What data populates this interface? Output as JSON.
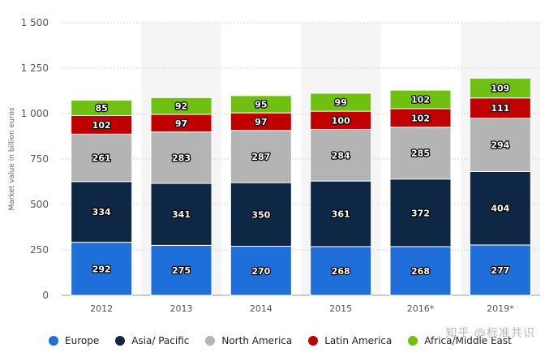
{
  "chart_data": {
    "type": "bar",
    "stacked": true,
    "categories": [
      "2012",
      "2013",
      "2014",
      "2015",
      "2016*",
      "2019*"
    ],
    "series": [
      {
        "name": "Europe",
        "color": "#1f6fdb",
        "values": [
          292,
          275,
          270,
          268,
          268,
          277
        ]
      },
      {
        "name": "Asia/ Pacific",
        "color": "#0d2744",
        "values": [
          334,
          341,
          350,
          361,
          372,
          404
        ]
      },
      {
        "name": "North America",
        "color": "#b4b4b4",
        "values": [
          261,
          283,
          287,
          284,
          285,
          294
        ]
      },
      {
        "name": "Latin America",
        "color": "#c00000",
        "values": [
          102,
          97,
          97,
          100,
          102,
          111
        ]
      },
      {
        "name": "Africa/Middle East",
        "color": "#6fc010",
        "values": [
          85,
          92,
          95,
          99,
          102,
          109
        ]
      }
    ],
    "ylabel": "Market value in billion euros",
    "ylim": [
      0,
      1500
    ],
    "yticks": [
      0,
      250,
      500,
      750,
      1000,
      1250,
      1500
    ],
    "ytick_labels": [
      "0",
      "250",
      "500",
      "750",
      "1 000",
      "1 250",
      "1 500"
    ],
    "grid": true,
    "legend_position": "bottom"
  },
  "watermark": "知乎 @标准共识"
}
